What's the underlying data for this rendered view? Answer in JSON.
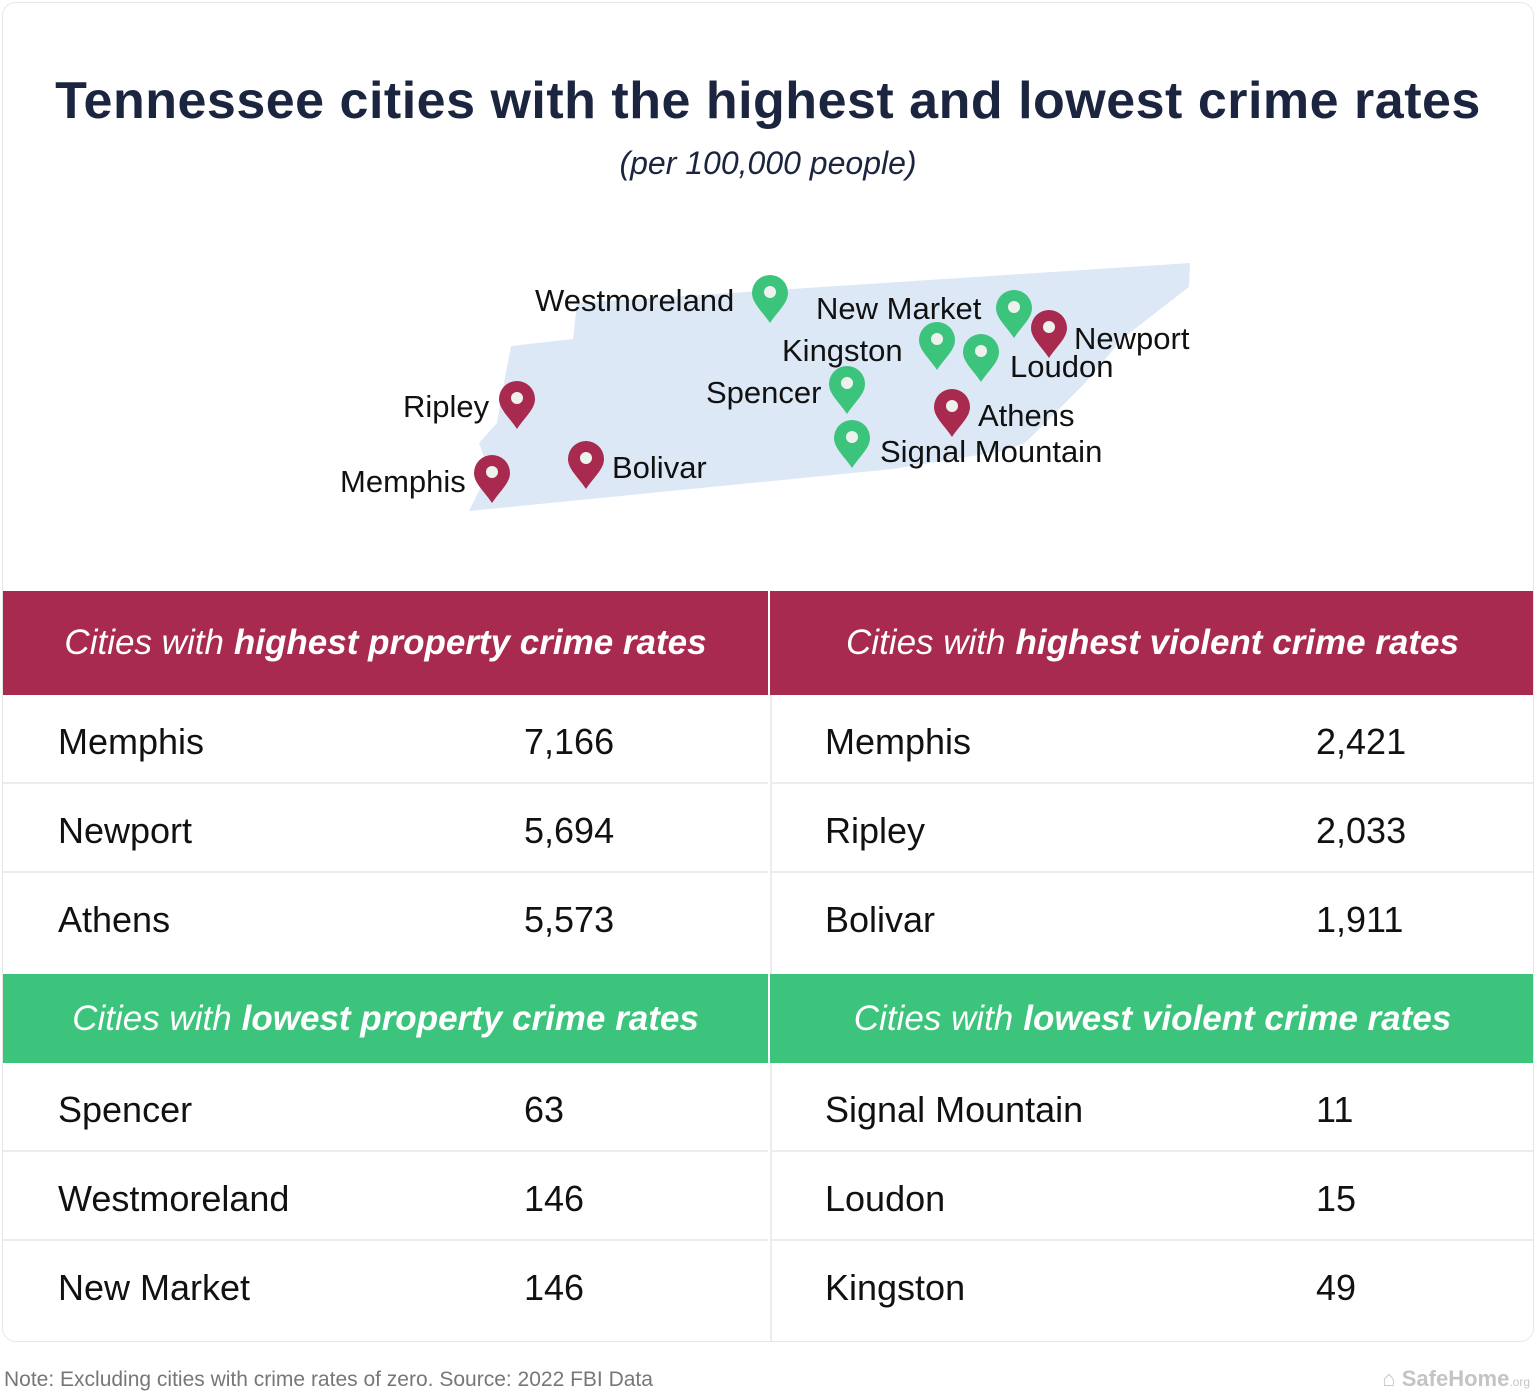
{
  "title": "Tennessee cities with the highest and lowest crime rates",
  "subtitle": "(per 100,000 people)",
  "colors": {
    "high": "#a82a4e",
    "low": "#3cc47c",
    "map": "#dce8f5",
    "title": "#1c2540"
  },
  "map": {
    "pins": [
      {
        "city": "Westmoreland",
        "group": "low"
      },
      {
        "city": "New Market",
        "group": "low"
      },
      {
        "city": "Newport",
        "group": "high"
      },
      {
        "city": "Kingston",
        "group": "low"
      },
      {
        "city": "Loudon",
        "group": "low"
      },
      {
        "city": "Spencer",
        "group": "low"
      },
      {
        "city": "Ripley",
        "group": "high"
      },
      {
        "city": "Athens",
        "group": "high"
      },
      {
        "city": "Signal Mountain",
        "group": "low"
      },
      {
        "city": "Bolivar",
        "group": "high"
      },
      {
        "city": "Memphis",
        "group": "high"
      }
    ]
  },
  "tables": {
    "high_property": {
      "prefix": "Cities with",
      "emph": "highest property crime rates",
      "rows": [
        [
          "Memphis",
          "7,166"
        ],
        [
          "Newport",
          "5,694"
        ],
        [
          "Athens",
          "5,573"
        ]
      ]
    },
    "high_violent": {
      "prefix": "Cities with",
      "emph": "highest violent crime rates",
      "rows": [
        [
          "Memphis",
          "2,421"
        ],
        [
          "Ripley",
          "2,033"
        ],
        [
          "Bolivar",
          "1,911"
        ]
      ]
    },
    "low_property": {
      "prefix": "Cities with",
      "emph": "lowest property crime rates",
      "rows": [
        [
          "Spencer",
          "63"
        ],
        [
          "Westmoreland",
          "146"
        ],
        [
          "New Market",
          "146"
        ]
      ]
    },
    "low_violent": {
      "prefix": "Cities with",
      "emph": "lowest violent crime rates",
      "rows": [
        [
          "Signal Mountain",
          "11"
        ],
        [
          "Loudon",
          "15"
        ],
        [
          "Kingston",
          "49"
        ]
      ]
    }
  },
  "footer": {
    "note": "Note: Excluding cities with crime rates of zero. Source: 2022 FBI Data",
    "logo": "SafeHome",
    "logo_tld": ".org"
  }
}
